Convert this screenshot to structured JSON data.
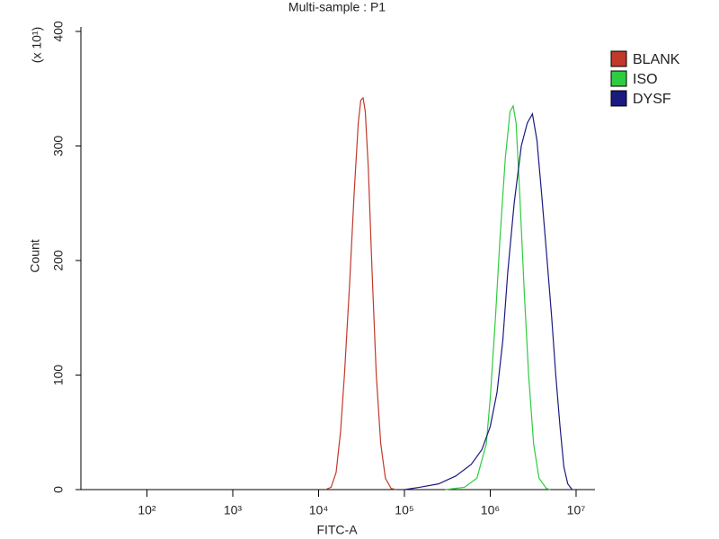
{
  "chart_data": {
    "type": "line",
    "title": "Multi-sample : P1",
    "x_label": "FITC-A",
    "y_label": "Count",
    "y_multiplier": "(x 10¹)",
    "x_scale": "log",
    "grid": false,
    "legend": "right",
    "xlim": [
      17,
      16600000
    ],
    "ylim": [
      0,
      400
    ],
    "xticks": [
      {
        "value": 100,
        "label": "10²"
      },
      {
        "value": 1000,
        "label": "10³"
      },
      {
        "value": 10000,
        "label": "10⁴"
      },
      {
        "value": 100000,
        "label": "10⁵"
      },
      {
        "value": 1000000,
        "label": "10⁶"
      },
      {
        "value": 10000000,
        "label": "10⁷"
      }
    ],
    "yticks": [
      0,
      100,
      200,
      300,
      400
    ],
    "series": [
      {
        "name": "BLANK",
        "color": "#c0392b",
        "x": [
          12000,
          14000,
          16000,
          18000,
          20000,
          23000,
          26000,
          29000,
          31000,
          33000,
          35000,
          38000,
          42000,
          47000,
          53000,
          60000,
          70000,
          80000
        ],
        "values": [
          0,
          2,
          15,
          50,
          100,
          180,
          260,
          320,
          340,
          342,
          330,
          280,
          190,
          100,
          40,
          10,
          1,
          0
        ]
      },
      {
        "name": "ISO",
        "color": "#2ecc40",
        "x": [
          300000,
          500000,
          700000,
          900000,
          1000000,
          1150000,
          1300000,
          1500000,
          1700000,
          1850000,
          2000000,
          2200000,
          2500000,
          2800000,
          3200000,
          3700000,
          4500000,
          5000000
        ],
        "values": [
          0,
          2,
          10,
          40,
          80,
          150,
          220,
          290,
          330,
          335,
          320,
          260,
          170,
          100,
          40,
          10,
          1,
          0
        ]
      },
      {
        "name": "DYSF",
        "color": "#1a1a80",
        "x": [
          100000,
          150000,
          250000,
          400000,
          600000,
          800000,
          1000000,
          1200000,
          1400000,
          1600000,
          1900000,
          2300000,
          2700000,
          3100000,
          3500000,
          4000000,
          4600000,
          5200000,
          5800000,
          6500000,
          7200000,
          8000000,
          9000000
        ],
        "values": [
          0,
          2,
          5,
          12,
          22,
          35,
          55,
          85,
          130,
          190,
          250,
          300,
          320,
          328,
          305,
          255,
          200,
          150,
          100,
          55,
          20,
          5,
          0
        ]
      }
    ]
  }
}
